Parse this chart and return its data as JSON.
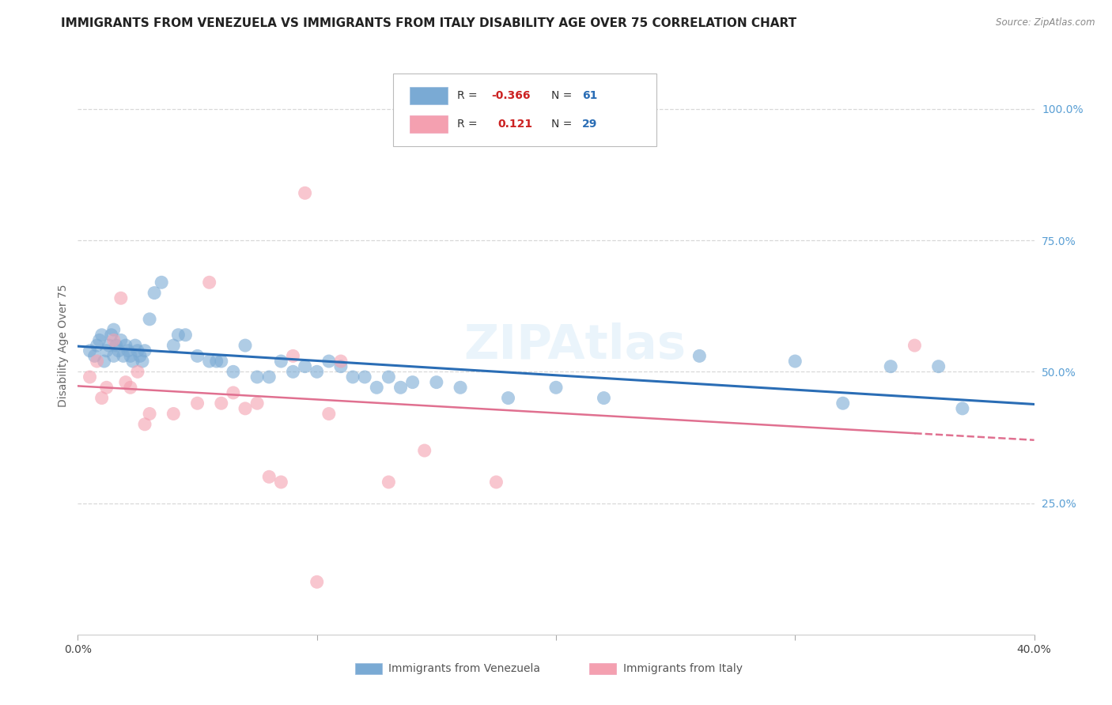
{
  "title": "IMMIGRANTS FROM VENEZUELA VS IMMIGRANTS FROM ITALY DISABILITY AGE OVER 75 CORRELATION CHART",
  "source": "Source: ZipAtlas.com",
  "ylabel": "Disability Age Over 75",
  "y_tick_labels": [
    "100.0%",
    "75.0%",
    "50.0%",
    "25.0%"
  ],
  "y_tick_values": [
    1.0,
    0.75,
    0.5,
    0.25
  ],
  "xlim": [
    0.0,
    0.4
  ],
  "ylim": [
    0.0,
    1.1
  ],
  "watermark": "ZIPAtlas",
  "legend_R_venezuela": "-0.366",
  "legend_N_venezuela": "61",
  "legend_R_italy": "0.121",
  "legend_N_italy": "29",
  "venezuela_color": "#7aaad4",
  "italy_color": "#f4a0b0",
  "venezuela_line_color": "#2a6db5",
  "italy_line_color": "#e07090",
  "venezuela_x": [
    0.005,
    0.007,
    0.008,
    0.009,
    0.01,
    0.011,
    0.012,
    0.013,
    0.014,
    0.015,
    0.015,
    0.016,
    0.017,
    0.018,
    0.019,
    0.02,
    0.021,
    0.022,
    0.023,
    0.024,
    0.025,
    0.026,
    0.027,
    0.028,
    0.03,
    0.032,
    0.035,
    0.04,
    0.042,
    0.045,
    0.05,
    0.055,
    0.058,
    0.06,
    0.065,
    0.07,
    0.075,
    0.08,
    0.085,
    0.09,
    0.095,
    0.1,
    0.105,
    0.11,
    0.115,
    0.12,
    0.125,
    0.13,
    0.135,
    0.14,
    0.15,
    0.16,
    0.18,
    0.2,
    0.22,
    0.26,
    0.3,
    0.32,
    0.34,
    0.36,
    0.37
  ],
  "venezuela_y": [
    0.54,
    0.53,
    0.55,
    0.56,
    0.57,
    0.52,
    0.54,
    0.55,
    0.57,
    0.53,
    0.58,
    0.55,
    0.54,
    0.56,
    0.53,
    0.55,
    0.54,
    0.53,
    0.52,
    0.55,
    0.54,
    0.53,
    0.52,
    0.54,
    0.6,
    0.65,
    0.67,
    0.55,
    0.57,
    0.57,
    0.53,
    0.52,
    0.52,
    0.52,
    0.5,
    0.55,
    0.49,
    0.49,
    0.52,
    0.5,
    0.51,
    0.5,
    0.52,
    0.51,
    0.49,
    0.49,
    0.47,
    0.49,
    0.47,
    0.48,
    0.48,
    0.47,
    0.45,
    0.47,
    0.45,
    0.53,
    0.52,
    0.44,
    0.51,
    0.51,
    0.43
  ],
  "italy_x": [
    0.005,
    0.008,
    0.01,
    0.012,
    0.015,
    0.018,
    0.02,
    0.022,
    0.025,
    0.028,
    0.03,
    0.04,
    0.05,
    0.055,
    0.06,
    0.065,
    0.07,
    0.075,
    0.08,
    0.085,
    0.09,
    0.095,
    0.1,
    0.105,
    0.11,
    0.13,
    0.145,
    0.175,
    0.35
  ],
  "italy_y": [
    0.49,
    0.52,
    0.45,
    0.47,
    0.56,
    0.64,
    0.48,
    0.47,
    0.5,
    0.4,
    0.42,
    0.42,
    0.44,
    0.67,
    0.44,
    0.46,
    0.43,
    0.44,
    0.3,
    0.29,
    0.53,
    0.84,
    0.1,
    0.42,
    0.52,
    0.29,
    0.35,
    0.29,
    0.55
  ],
  "background_color": "#ffffff",
  "grid_color": "#d8d8d8",
  "right_axis_color": "#5a9fd4",
  "title_fontsize": 11,
  "legend_fontsize": 10,
  "tick_fontsize": 10
}
